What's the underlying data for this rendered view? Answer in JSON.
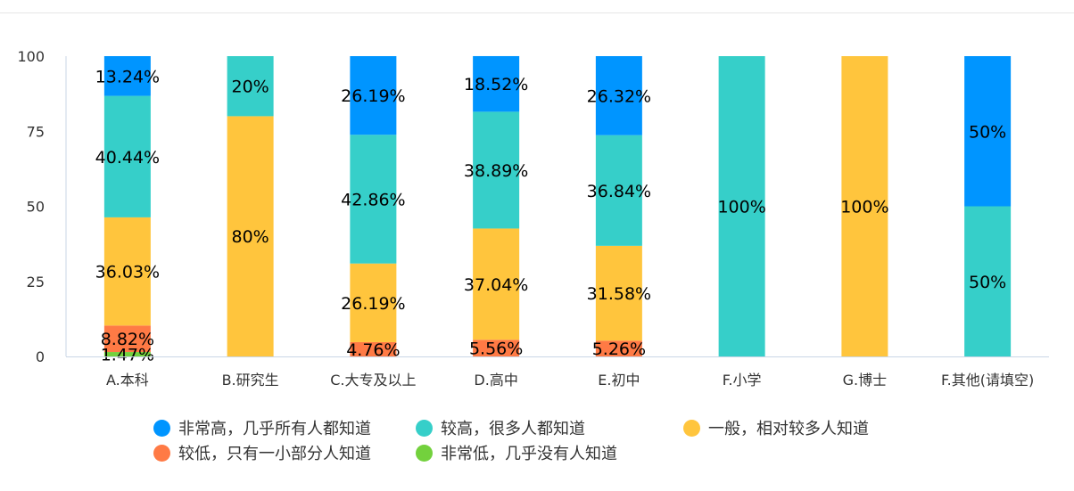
{
  "colors": {
    "very_high": "#0095FF",
    "high": "#36CFC9",
    "medium": "#FFC53D",
    "low": "#FF7A45",
    "very_low": "#73D13D",
    "axis": "#c9d6e6",
    "text": "#333333"
  },
  "chart_data": {
    "type": "bar",
    "stacked": true,
    "categories": [
      "A.本科",
      "B.研究生",
      "C.大专及以上",
      "D.高中",
      "E.初中",
      "F.小学",
      "G.博士",
      "F.其他(请填空)"
    ],
    "ylim": [
      0,
      100
    ],
    "yticks": [
      "0",
      "25",
      "50",
      "75",
      "100"
    ],
    "grid": false,
    "legend_position": "bottom",
    "series": [
      {
        "name": "非常低，几乎没有人知道",
        "color_key": "very_low",
        "values": [
          1.47,
          0,
          0,
          0,
          0,
          0,
          0,
          0
        ],
        "labels": [
          "1.47%",
          "",
          "",
          "",
          "",
          "",
          "",
          ""
        ]
      },
      {
        "name": "较低，只有一小部分人知道",
        "color_key": "low",
        "values": [
          8.82,
          0,
          4.76,
          5.56,
          5.26,
          0,
          0,
          0
        ],
        "labels": [
          "8.82%",
          "",
          "4.76%",
          "5.56%",
          "5.26%",
          "",
          "",
          ""
        ]
      },
      {
        "name": "一般，相对较多人知道",
        "color_key": "medium",
        "values": [
          36.03,
          80,
          26.19,
          37.04,
          31.58,
          0,
          100,
          0
        ],
        "labels": [
          "36.03%",
          "80%",
          "26.19%",
          "37.04%",
          "31.58%",
          "",
          "100%",
          ""
        ]
      },
      {
        "name": "较高，很多人都知道",
        "color_key": "high",
        "values": [
          40.44,
          20,
          42.86,
          38.89,
          36.84,
          100,
          0,
          50
        ],
        "labels": [
          "40.44%",
          "20%",
          "42.86%",
          "38.89%",
          "36.84%",
          "100%",
          "",
          "50%"
        ]
      },
      {
        "name": "非常高，几乎所有人都知道",
        "color_key": "very_high",
        "values": [
          13.24,
          0,
          26.19,
          18.52,
          26.32,
          0,
          0,
          50
        ],
        "labels": [
          "13.24%",
          "",
          "26.19%",
          "18.52%",
          "26.32%",
          "",
          "",
          "50%"
        ]
      }
    ]
  },
  "legend": {
    "items": [
      {
        "label": "非常高，几乎所有人都知道",
        "color_key": "very_high"
      },
      {
        "label": "较高，很多人都知道",
        "color_key": "high"
      },
      {
        "label": "一般，相对较多人知道",
        "color_key": "medium"
      },
      {
        "label": "较低，只有一小部分人知道",
        "color_key": "low"
      },
      {
        "label": "非常低，几乎没有人知道",
        "color_key": "very_low"
      }
    ]
  }
}
